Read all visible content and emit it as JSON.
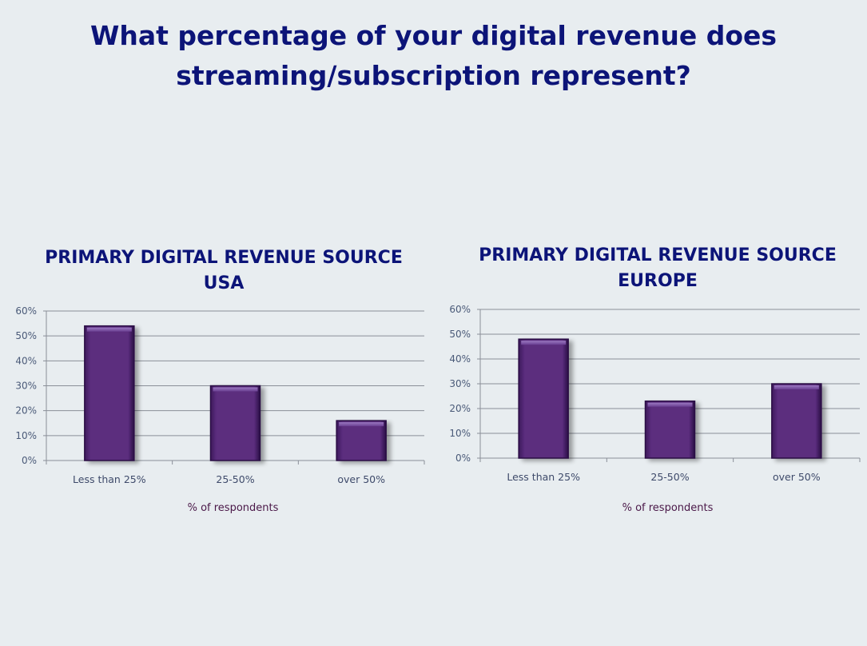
{
  "page": {
    "title_line1": "What percentage of your digital revenue does",
    "title_line2": "streaming/subscription represent?"
  },
  "colors": {
    "bar_fill": "#5b2d7e",
    "bar_edge": "#2a0f45",
    "gridline": "#8a8f98",
    "title": "#0c1478",
    "background": "#e8edf0"
  },
  "chart_data": [
    {
      "type": "bar",
      "title_line1": "PRIMARY DIGITAL REVENUE SOURCE",
      "title_line2": "USA",
      "categories": [
        "Less than 25%",
        "25-50%",
        "over 50%"
      ],
      "values": [
        54,
        30,
        16
      ],
      "xlabel": "% of respondents",
      "ylabel": "",
      "ylim": [
        0,
        60
      ],
      "yticks": [
        "0%",
        "10%",
        "20%",
        "30%",
        "40%",
        "50%",
        "60%"
      ],
      "grid": true
    },
    {
      "type": "bar",
      "title_line1": "PRIMARY DIGITAL REVENUE SOURCE",
      "title_line2": "EUROPE",
      "categories": [
        "Less than 25%",
        "25-50%",
        "over 50%"
      ],
      "values": [
        48,
        23,
        30
      ],
      "xlabel": "% of respondents",
      "ylabel": "",
      "ylim": [
        0,
        60
      ],
      "yticks": [
        "0%",
        "10%",
        "20%",
        "30%",
        "40%",
        "50%",
        "60%"
      ],
      "grid": true
    }
  ]
}
